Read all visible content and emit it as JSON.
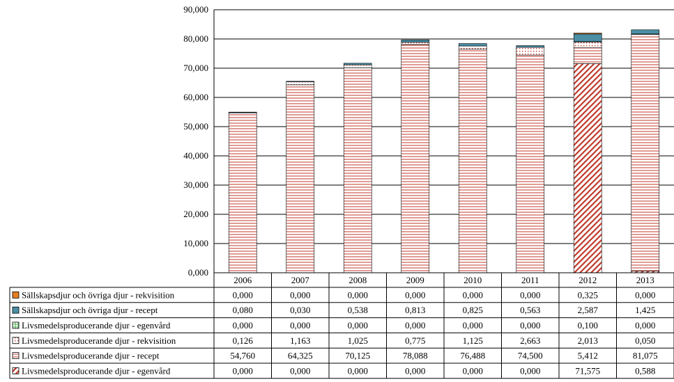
{
  "chart_data": {
    "type": "bar",
    "stacked": true,
    "categories": [
      "2006",
      "2007",
      "2008",
      "2009",
      "2010",
      "2011",
      "2012",
      "2013"
    ],
    "ylim": [
      0,
      90
    ],
    "yticks": [
      "0,000",
      "10,000",
      "20,000",
      "30,000",
      "40,000",
      "50,000",
      "60,000",
      "70,000",
      "80,000",
      "90,000"
    ],
    "grid": true,
    "legend": "data-table",
    "series": [
      {
        "name": "Livsmedelsproducerande djur - egenvård",
        "color": "#c0392b",
        "pattern": "diag",
        "values": [
          0,
          0,
          0,
          0,
          0,
          0,
          71.575,
          0.588
        ],
        "labels": [
          "0,000",
          "0,000",
          "0,000",
          "0,000",
          "0,000",
          "0,000",
          "71,575",
          "0,588"
        ]
      },
      {
        "name": "Livsmedelsproducerande djur - recept",
        "color": "#c0392b",
        "pattern": "hlines",
        "values": [
          54.76,
          64.325,
          70.125,
          78.088,
          76.488,
          74.5,
          5.412,
          81.075
        ],
        "labels": [
          "54,760",
          "64,325",
          "70,125",
          "78,088",
          "76,488",
          "74,500",
          "5,412",
          "81,075"
        ]
      },
      {
        "name": "Livsmedelsproducerande djur - rekvisition",
        "color": "#c0392b",
        "pattern": "dots",
        "values": [
          0.126,
          1.163,
          1.025,
          0.775,
          1.125,
          2.663,
          2.013,
          0.05
        ],
        "labels": [
          "0,126",
          "1,163",
          "1,025",
          "0,775",
          "1,125",
          "2,663",
          "2,013",
          "0,050"
        ]
      },
      {
        "name": "Livsmedelsproducerande djur - egenvård",
        "color": "#4caf50",
        "pattern": "grid",
        "values": [
          0,
          0,
          0,
          0,
          0,
          0,
          0.1,
          0
        ],
        "labels": [
          "0,000",
          "0,000",
          "0,000",
          "0,000",
          "0,000",
          "0,000",
          "0,100",
          "0,000"
        ]
      },
      {
        "name": "Sällskapsdjur och övriga djur - recept",
        "color": "#4a8fa6",
        "pattern": "solid",
        "values": [
          0.08,
          0.03,
          0.538,
          0.813,
          0.825,
          0.563,
          2.587,
          1.425
        ],
        "labels": [
          "0,080",
          "0,030",
          "0,538",
          "0,813",
          "0,825",
          "0,563",
          "2,587",
          "1,425"
        ]
      },
      {
        "name": "Sällskapsdjur och övriga djur - rekvisition",
        "color": "#e67e22",
        "pattern": "solid",
        "values": [
          0,
          0,
          0,
          0,
          0,
          0,
          0.325,
          0
        ],
        "labels": [
          "0,000",
          "0,000",
          "0,000",
          "0,000",
          "0,000",
          "0,000",
          "0,325",
          "0,000"
        ]
      }
    ],
    "table_row_order": [
      5,
      4,
      3,
      2,
      1,
      0
    ]
  }
}
